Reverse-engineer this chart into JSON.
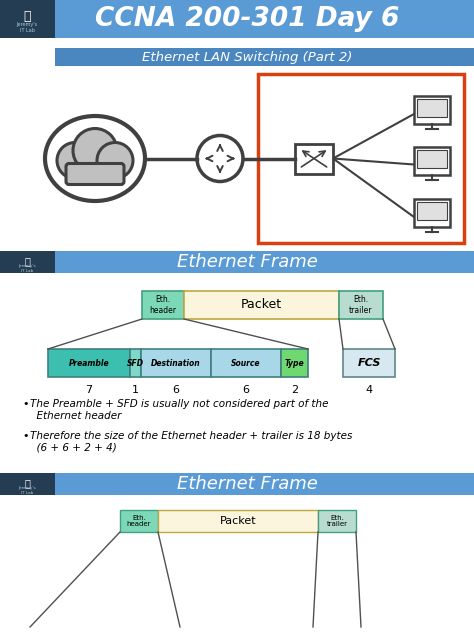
{
  "title": "CCNA 200-301 Day 6",
  "subtitle": "Ethernet LAN Switching (Part 2)",
  "section1_title": "Ethernet Frame",
  "section2_title": "Ethernet Frame",
  "bg_color": "#ffffff",
  "header_bg": "#5b9bd5",
  "header_text": "#ffffff",
  "subheader_bg": "#4a86c0",
  "dark_header_bg": "#253d52",
  "frame_colors": {
    "preamble": "#3dbfb0",
    "sfd": "#7dd8c8",
    "destination": "#a8d8e8",
    "source": "#a8d8e8",
    "type": "#70d870",
    "fcs": "#d8e8f0",
    "eth_header": "#7dd8b8",
    "packet": "#faf5dc",
    "eth_trailer": "#b8dcd0"
  },
  "bullet_texts": [
    [
      "• The ",
      "Preamble + SFD",
      " is usually not considered part of the\n  Ethernet header"
    ],
    [
      "• Therefore the size of the Ethernet header + trailer is ",
      "18 bytes",
      "\n  (6 + 6 + 2 + 4)"
    ]
  ],
  "network_box_color": "#d84010",
  "frame_labels": [
    "Preamble",
    "SFD",
    "Destination",
    "Source",
    "Type",
    "FCS"
  ],
  "frame_numbers": [
    "7",
    "1",
    "6",
    "6",
    "2",
    "4"
  ]
}
